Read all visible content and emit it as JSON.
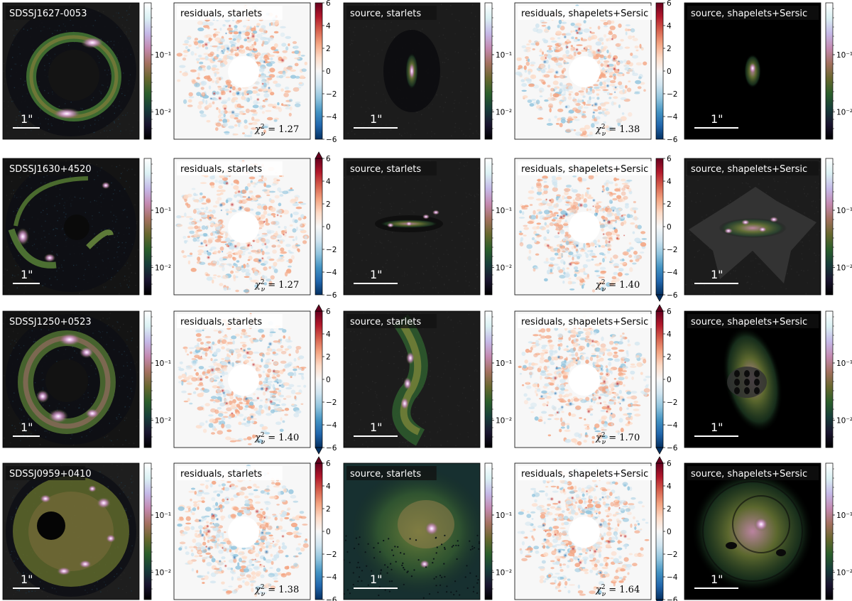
{
  "figure": {
    "colorbars": {
      "log_ticks": [
        "10⁻¹",
        "10⁻²"
      ],
      "residual_ticks": [
        "6",
        "4",
        "2",
        "0",
        "−2",
        "−4",
        "−6"
      ]
    },
    "colormaps": {
      "cubehelix": [
        "#000000",
        "#1a1530",
        "#173d3a",
        "#2a5e2b",
        "#67682e",
        "#a3705e",
        "#c489b0",
        "#c5b9e8",
        "#dbf1f4",
        "#ffffff"
      ],
      "coolwarm_res": [
        "#053061",
        "#2166ac",
        "#4393c3",
        "#92c5de",
        "#d1e5f0",
        "#f7f7f7",
        "#fddbc7",
        "#f4a582",
        "#d6604d",
        "#b2182b",
        "#67001f"
      ]
    },
    "scalebar_label": "1\"",
    "rows": [
      {
        "lens": "SDSSJ1627-0053",
        "panels": [
          {
            "kind": "image",
            "label": "SDSSJ1627-0053",
            "morph": "ring",
            "bg": "#1b1b1b"
          },
          {
            "kind": "residual",
            "label": "residuals, starlets",
            "chi2": "1.27",
            "extend": "none"
          },
          {
            "kind": "source",
            "label": "source, starlets",
            "morph": "blob_v"
          },
          {
            "kind": "residual",
            "label": "residuals, shapelets+Sersic",
            "chi2": "1.38",
            "extend": "none"
          },
          {
            "kind": "source",
            "label": "source, shapelets+Sersic",
            "morph": "blob_small"
          }
        ]
      },
      {
        "lens": "SDSSJ1630+4520",
        "panels": [
          {
            "kind": "image",
            "label": "SDSSJ1630+4520",
            "morph": "arcs",
            "bg": "#141414"
          },
          {
            "kind": "residual",
            "label": "residuals, starlets",
            "chi2": "1.27",
            "extend": "max"
          },
          {
            "kind": "source",
            "label": "source, starlets",
            "morph": "bar_h"
          },
          {
            "kind": "residual",
            "label": "residuals, shapelets+Sersic",
            "chi2": "1.40",
            "extend": "min"
          },
          {
            "kind": "source",
            "label": "source, shapelets+Sersic",
            "morph": "bar_h_star"
          }
        ]
      },
      {
        "lens": "SDSSJ1250+0523",
        "panels": [
          {
            "kind": "image",
            "label": "SDSSJ1250+0523",
            "morph": "ring_bright",
            "bg": "#141414"
          },
          {
            "kind": "residual",
            "label": "residuals, starlets",
            "chi2": "1.40",
            "extend": "both"
          },
          {
            "kind": "source",
            "label": "source, starlets",
            "morph": "filament_v"
          },
          {
            "kind": "residual",
            "label": "residuals, shapelets+Sersic",
            "chi2": "1.70",
            "extend": "both"
          },
          {
            "kind": "source",
            "label": "source, shapelets+Sersic",
            "morph": "glow_v"
          }
        ]
      },
      {
        "lens": "SDSSJ0959+0410",
        "panels": [
          {
            "kind": "image",
            "label": "SDSSJ0959+0410",
            "morph": "disk_hole",
            "bg": "#1e1e1e"
          },
          {
            "kind": "residual",
            "label": "residuals, starlets",
            "chi2": "1.38",
            "extend": "max"
          },
          {
            "kind": "source",
            "label": "source, starlets",
            "morph": "extended"
          },
          {
            "kind": "residual",
            "label": "residuals, shapelets+Sersic",
            "chi2": "1.64",
            "extend": "both"
          },
          {
            "kind": "source",
            "label": "source, shapelets+Sersic",
            "morph": "extended_round"
          }
        ]
      }
    ]
  }
}
